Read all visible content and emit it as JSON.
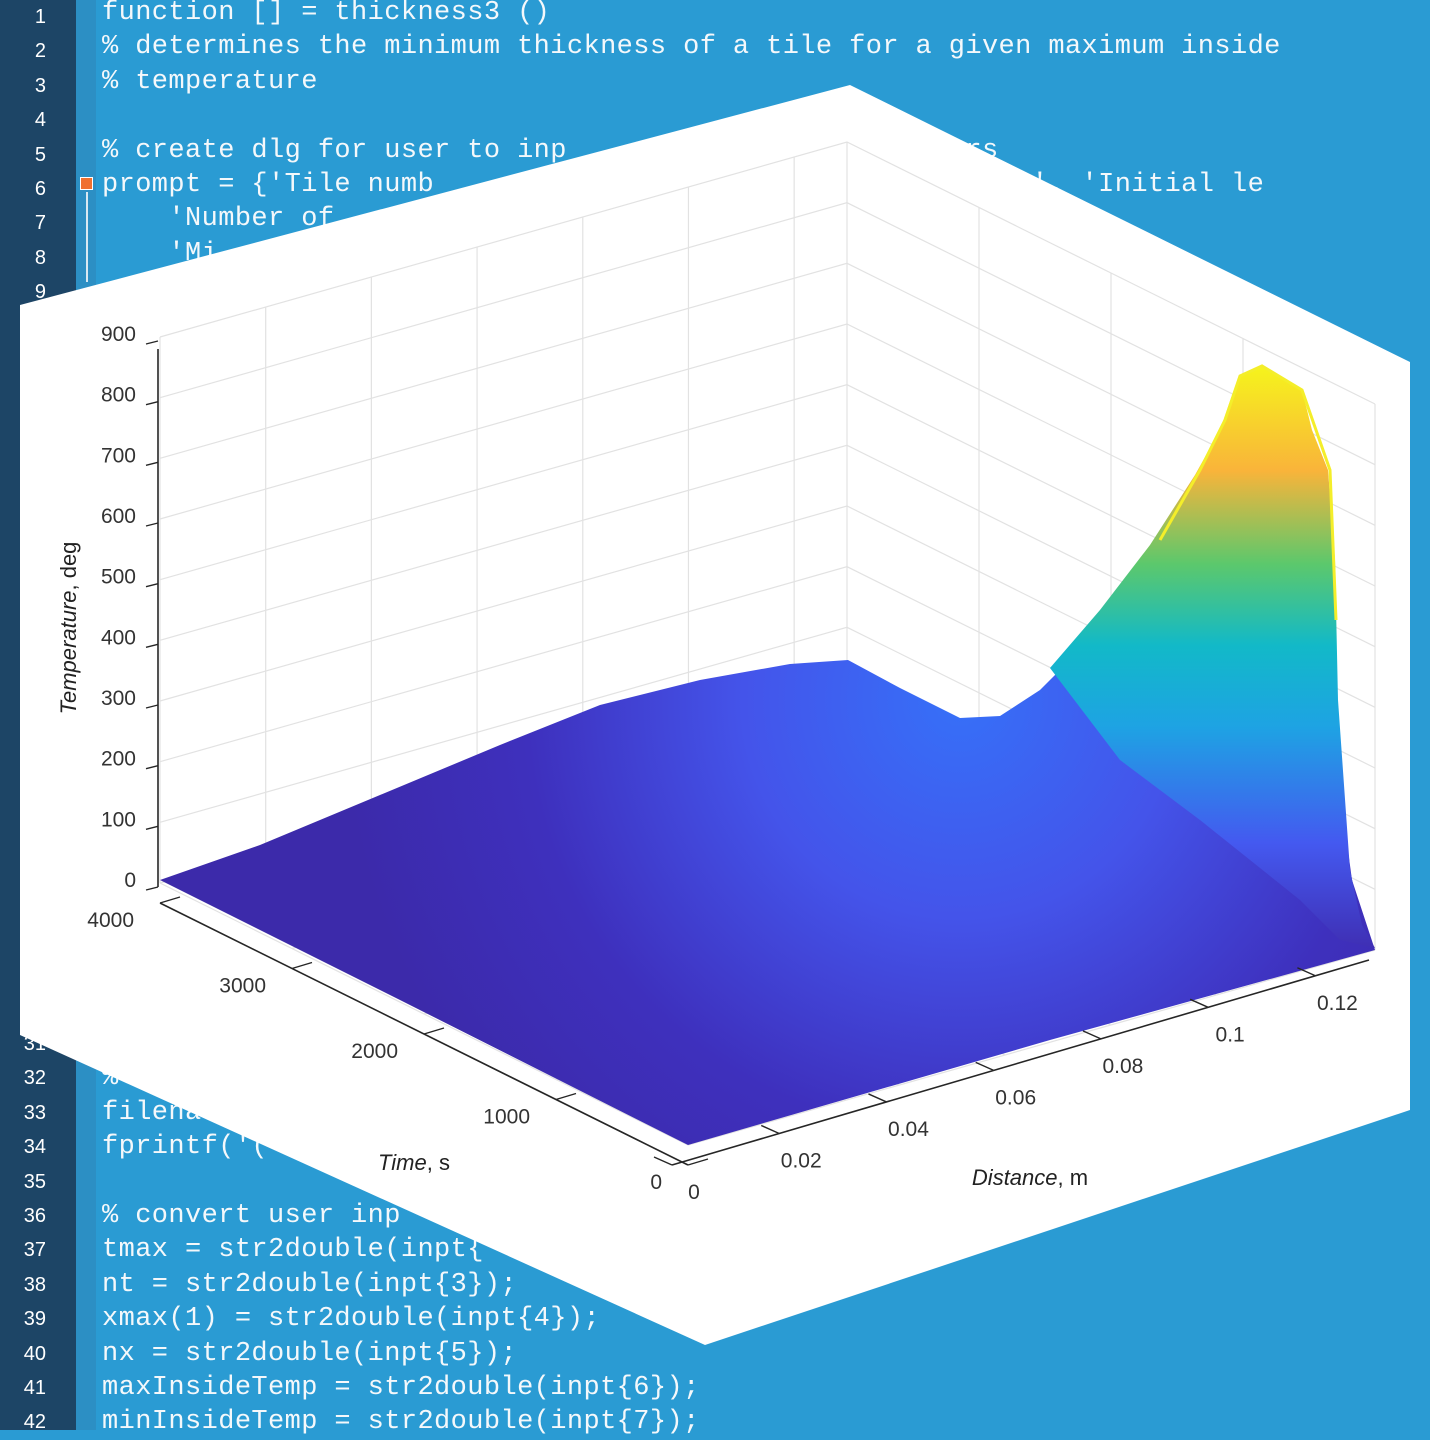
{
  "editor": {
    "line_numbers_top": [
      "1",
      "2",
      "3",
      "4",
      "5",
      "6",
      "7",
      "8",
      "9"
    ],
    "line_numbers_bottom": [
      "31",
      "32",
      "33",
      "34",
      "35",
      "36",
      "37",
      "38",
      "39",
      "40",
      "41",
      "42"
    ],
    "code_top": [
      "function [] = thickness3 ()",
      "% determines the minimum thickness of a tile for a given maximum inside",
      "% temperature",
      "",
      "% create dlg for user to inp                       ers",
      "prompt = {'Tile numb                             e steps', 'Initial le",
      "    'Number of                                e',...",
      "    'Mi"
    ],
    "code_bottom": [
      "",
      "%",
      "filena",
      "fprintf('(",
      "",
      "% convert user inp",
      "tmax = str2double(inpt{",
      "nt = str2double(inpt{3});",
      "xmax(1) = str2double(inpt{4});",
      "nx = str2double(inpt{5});",
      "maxInsideTemp = str2double(inpt{6});",
      "minInsideTemp = str2double(inpt{7});"
    ]
  },
  "chart_data": {
    "type": "surface",
    "xlabel_italic": "Distance",
    "xlabel_unit": ", m",
    "ylabel_italic": "Time",
    "ylabel_unit": ", s",
    "zlabel_italic": "Temperature",
    "zlabel_unit": ", deg",
    "x_ticks": [
      "0",
      "0.02",
      "0.04",
      "0.06",
      "0.08",
      "0.1",
      "0.12"
    ],
    "y_ticks": [
      "0",
      "1000",
      "2000",
      "3000",
      "4000"
    ],
    "z_ticks": [
      "0",
      "100",
      "200",
      "300",
      "400",
      "500",
      "600",
      "700",
      "800",
      "900"
    ],
    "xlim": [
      0,
      0.13
    ],
    "ylim": [
      0,
      4000
    ],
    "zlim": [
      0,
      900
    ],
    "surface_peak_temperature": 870,
    "colormap": "parula",
    "colors": {
      "low": "#3d2db0",
      "mid": "#1ba7e0",
      "high": "#f6f21c",
      "orange": "#f9b43a"
    }
  }
}
